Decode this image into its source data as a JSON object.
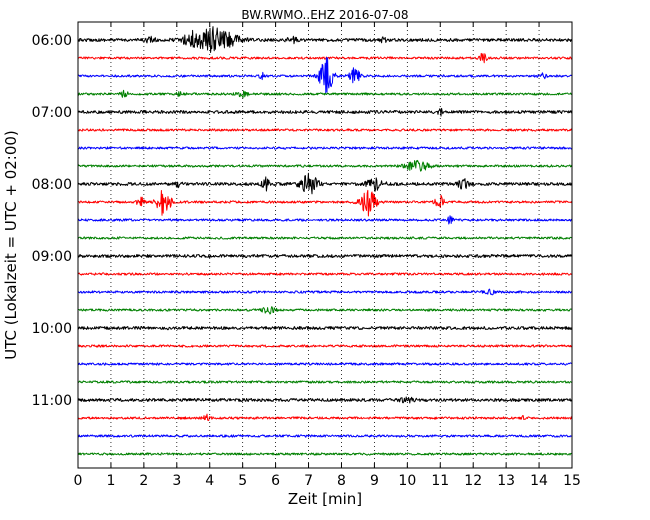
{
  "chart_data": {
    "type": "line",
    "title": "BW.RWMO..EHZ 2016-07-08",
    "xlabel": "Zeit  [min]",
    "ylabel": "UTC (Lokalzeit = UTC + 02:00)",
    "xlim": [
      0,
      15
    ],
    "x_ticks": [
      "0",
      "1",
      "2",
      "3",
      "4",
      "5",
      "6",
      "7",
      "8",
      "9",
      "10",
      "11",
      "12",
      "13",
      "14",
      "15"
    ],
    "y_ticks": [
      "06:00",
      "07:00",
      "08:00",
      "09:00",
      "10:00",
      "11:00"
    ],
    "grid": "vertical dotted lines at every minute",
    "trace_colors": [
      "#000000",
      "#ff0000",
      "#0000ff",
      "#008000"
    ],
    "traces_per_hour": 4,
    "trace_minutes": 15,
    "trace_count": 24,
    "events": [
      {
        "trace": 0,
        "center_min": 4.1,
        "width_min": 1.3,
        "amplitude": 12
      },
      {
        "trace": 0,
        "center_min": 3.4,
        "width_min": 0.3,
        "amplitude": 5
      },
      {
        "trace": 0,
        "center_min": 2.2,
        "width_min": 0.3,
        "amplitude": 2.5
      },
      {
        "trace": 0,
        "center_min": 6.5,
        "width_min": 0.3,
        "amplitude": 3
      },
      {
        "trace": 0,
        "center_min": 9.3,
        "width_min": 0.2,
        "amplitude": 3
      },
      {
        "trace": 1,
        "center_min": 12.3,
        "width_min": 0.2,
        "amplitude": 5
      },
      {
        "trace": 2,
        "center_min": 7.55,
        "width_min": 0.4,
        "amplitude": 18
      },
      {
        "trace": 2,
        "center_min": 8.4,
        "width_min": 0.3,
        "amplitude": 9
      },
      {
        "trace": 2,
        "center_min": 5.6,
        "width_min": 0.15,
        "amplitude": 5
      },
      {
        "trace": 2,
        "center_min": 14.1,
        "width_min": 0.2,
        "amplitude": 3
      },
      {
        "trace": 3,
        "center_min": 1.4,
        "width_min": 0.3,
        "amplitude": 3
      },
      {
        "trace": 3,
        "center_min": 5.0,
        "width_min": 0.3,
        "amplitude": 3
      },
      {
        "trace": 3,
        "center_min": 3.1,
        "width_min": 0.3,
        "amplitude": 2
      },
      {
        "trace": 4,
        "center_min": 11.0,
        "width_min": 0.15,
        "amplitude": 3
      },
      {
        "trace": 7,
        "center_min": 10.3,
        "width_min": 0.7,
        "amplitude": 5
      },
      {
        "trace": 8,
        "center_min": 7.0,
        "width_min": 0.5,
        "amplitude": 10
      },
      {
        "trace": 8,
        "center_min": 5.7,
        "width_min": 0.2,
        "amplitude": 6
      },
      {
        "trace": 8,
        "center_min": 9.0,
        "width_min": 0.5,
        "amplitude": 6
      },
      {
        "trace": 8,
        "center_min": 11.7,
        "width_min": 0.3,
        "amplitude": 5
      },
      {
        "trace": 8,
        "center_min": 3.0,
        "width_min": 0.3,
        "amplitude": 3
      },
      {
        "trace": 9,
        "center_min": 2.6,
        "width_min": 0.4,
        "amplitude": 14
      },
      {
        "trace": 9,
        "center_min": 1.9,
        "width_min": 0.2,
        "amplitude": 5
      },
      {
        "trace": 9,
        "center_min": 8.8,
        "width_min": 0.45,
        "amplitude": 14
      },
      {
        "trace": 9,
        "center_min": 11.0,
        "width_min": 0.3,
        "amplitude": 6
      },
      {
        "trace": 10,
        "center_min": 11.3,
        "width_min": 0.15,
        "amplitude": 4
      },
      {
        "trace": 14,
        "center_min": 12.5,
        "width_min": 0.3,
        "amplitude": 2.5
      },
      {
        "trace": 15,
        "center_min": 5.8,
        "width_min": 0.4,
        "amplitude": 3.5
      },
      {
        "trace": 16,
        "center_min": 2.8,
        "width_min": 0.1,
        "amplitude": 2
      },
      {
        "trace": 20,
        "center_min": 10.0,
        "width_min": 0.4,
        "amplitude": 2
      },
      {
        "trace": 21,
        "center_min": 3.9,
        "width_min": 0.2,
        "amplitude": 3.5
      },
      {
        "trace": 21,
        "center_min": 13.5,
        "width_min": 0.1,
        "amplitude": 2
      }
    ]
  }
}
